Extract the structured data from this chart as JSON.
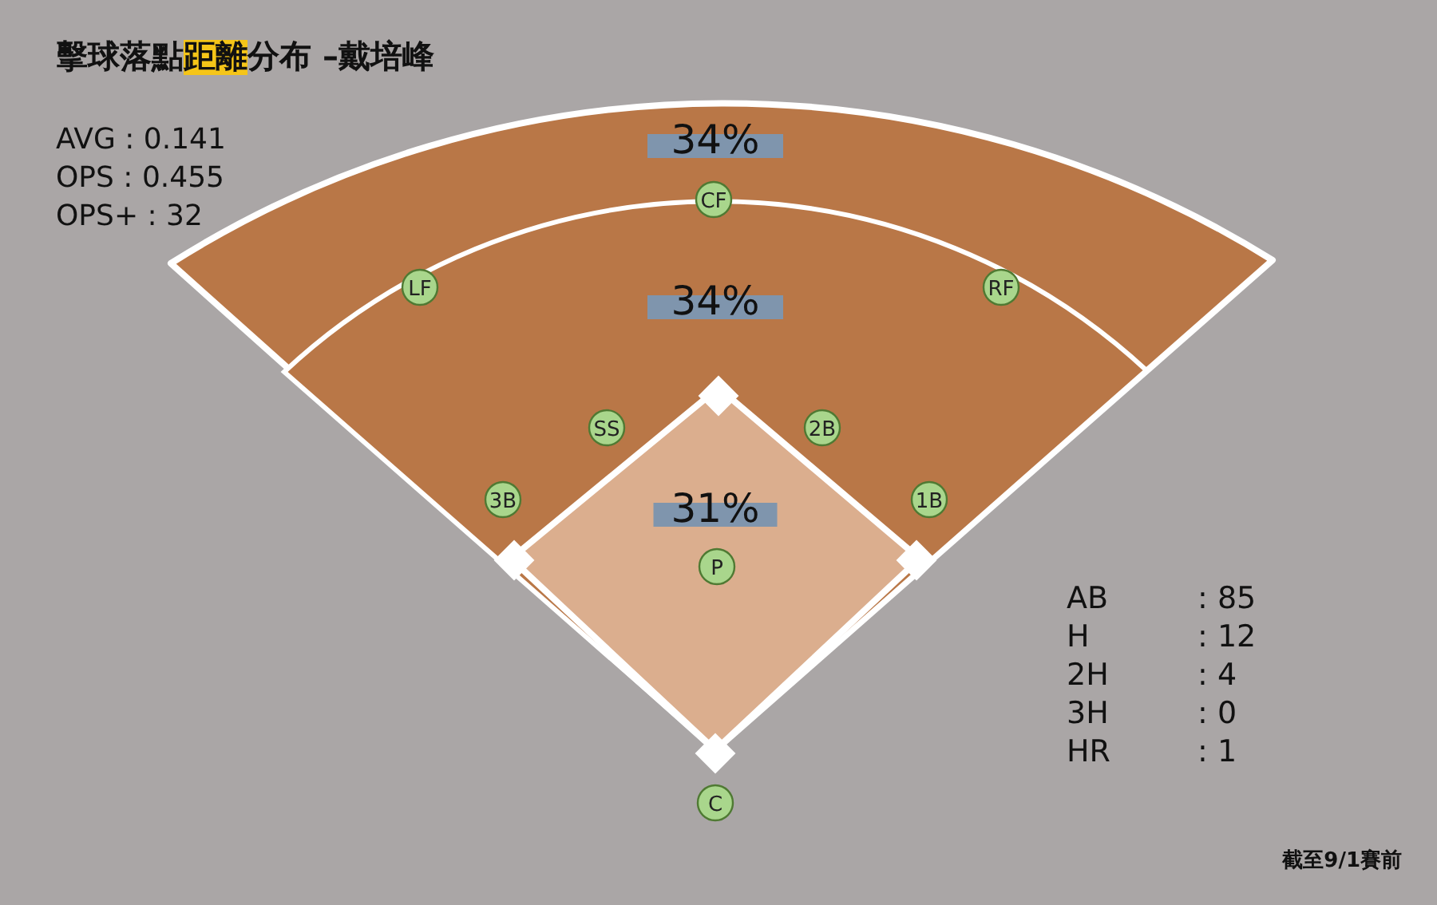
{
  "chart_data": {
    "type": "other",
    "title": "擊球落點距離分布 –戴培峰",
    "categories": [
      null,
      null,
      null
    ],
    "values": [
      34,
      34,
      31
    ],
    "value_labels": [
      "34%",
      "34%",
      "31%"
    ],
    "colors": [
      "#b97747",
      "#b97747",
      "#dbae8e"
    ],
    "annotations": [
      "AVG : 0.141",
      "OPS : 0.455",
      "OPS+ : 32",
      "CF",
      "LF",
      "RF",
      "SS",
      "2B",
      "3B",
      "1B",
      "P",
      "C",
      "AB",
      ": 85",
      "H",
      ": 12",
      "2H",
      ": 4",
      "3H",
      ": 0",
      "HR",
      ": 1",
      "截至9/1賽前"
    ]
  }
}
